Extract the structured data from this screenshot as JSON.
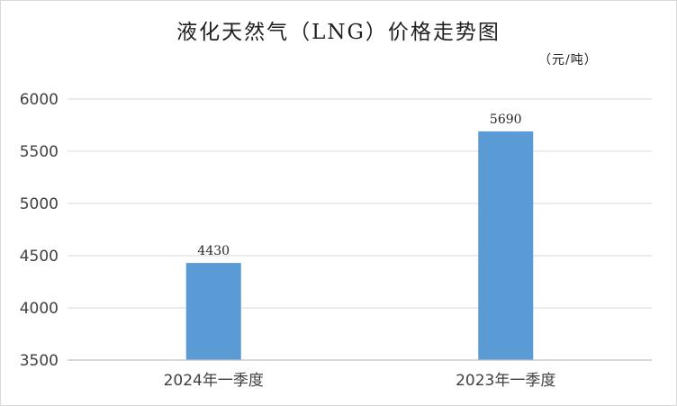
{
  "chart_data": {
    "type": "bar",
    "title": "液化天然气（LNG）价格走势图",
    "unit_label": "（元/吨）",
    "categories": [
      "2024年一季度",
      "2023年一季度"
    ],
    "values": [
      4430,
      5690
    ],
    "data_labels": [
      "4430",
      "5690"
    ],
    "ylim": [
      3500,
      6000
    ],
    "yticks": [
      "3500",
      "4000",
      "4500",
      "5000",
      "5500",
      "6000"
    ],
    "xlabel": "",
    "ylabel": "",
    "grid": true,
    "legend": "none",
    "bar_color": "#5b9bd5"
  }
}
